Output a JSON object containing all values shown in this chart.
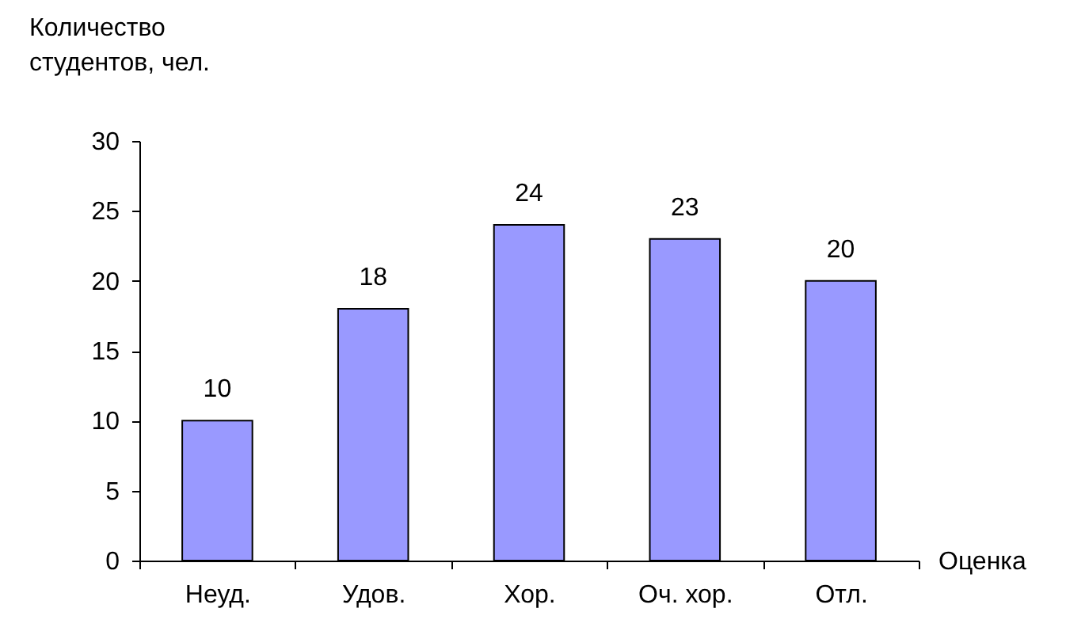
{
  "chart_data": {
    "type": "bar",
    "xlabel": "Оценка",
    "ylabel": "Количество студентов, чел.",
    "categories": [
      "Неуд.",
      "Удов.",
      "Хор.",
      "Оч. хор.",
      "Отл."
    ],
    "values": [
      10,
      18,
      24,
      23,
      20
    ],
    "color": "#9999ff",
    "ylim": [
      0,
      30
    ],
    "yticks": [
      0,
      5,
      10,
      15,
      20,
      25,
      30
    ],
    "grid": false,
    "data_labels": true
  }
}
